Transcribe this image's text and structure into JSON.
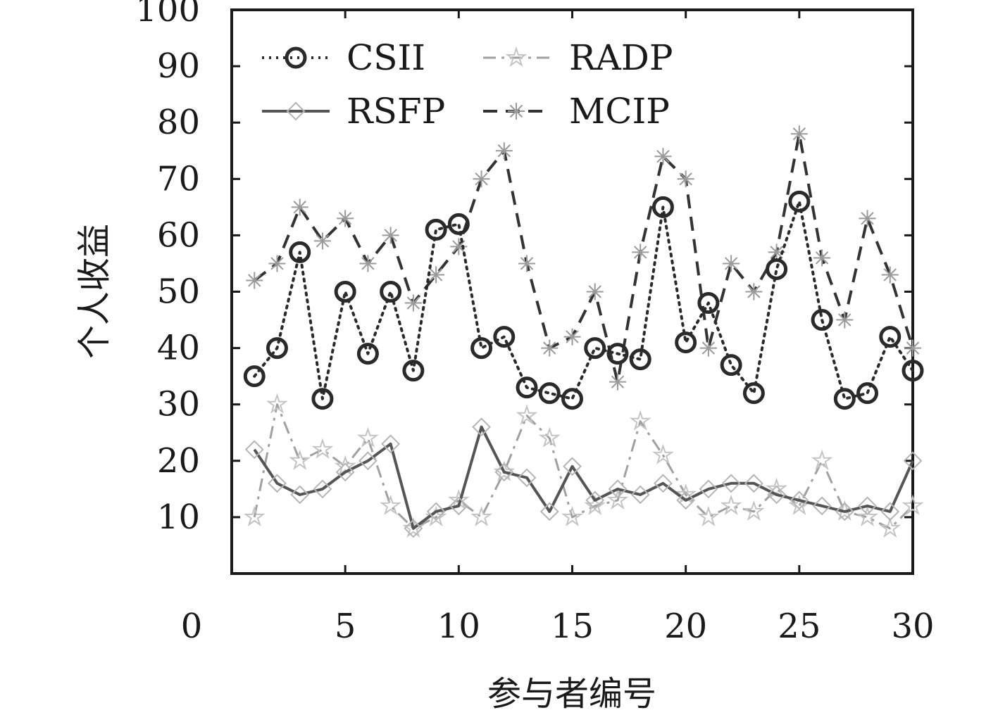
{
  "chart_data": {
    "type": "line",
    "xlabel": "参与者编号",
    "ylabel": "个人收益",
    "xlim": [
      0,
      30
    ],
    "ylim": [
      0,
      100
    ],
    "x_ticks": [
      "0",
      "5",
      "10",
      "15",
      "20",
      "25",
      "30"
    ],
    "y_ticks": [
      "10",
      "20",
      "30",
      "40",
      "50",
      "60",
      "70",
      "80",
      "90",
      "100"
    ],
    "grid": false,
    "legend_position": "top",
    "x": [
      1,
      2,
      3,
      4,
      5,
      6,
      7,
      8,
      9,
      10,
      11,
      12,
      13,
      14,
      15,
      16,
      17,
      18,
      19,
      20,
      21,
      22,
      23,
      24,
      25,
      26,
      27,
      28,
      29,
      30
    ],
    "series": [
      {
        "name": "CSII",
        "line": "dotted",
        "marker": "circle",
        "color": "#2a2a2a",
        "values": [
          35,
          40,
          57,
          31,
          50,
          39,
          50,
          36,
          61,
          62,
          40,
          42,
          33,
          32,
          31,
          40,
          39,
          38,
          65,
          41,
          48,
          37,
          32,
          54,
          66,
          45,
          31,
          32,
          42,
          36
        ]
      },
      {
        "name": "RADP",
        "line": "dashdot",
        "marker": "star",
        "color": "#a0a0a0",
        "values": [
          10,
          30,
          20,
          22,
          19,
          24,
          12,
          8,
          10,
          13,
          10,
          18,
          28,
          24,
          10,
          12,
          13,
          27,
          21,
          14,
          10,
          12,
          11,
          15,
          12,
          20,
          11,
          10,
          8,
          12
        ]
      },
      {
        "name": "RSFP",
        "line": "solid",
        "marker": "diamond",
        "color": "#555555",
        "values": [
          22,
          16,
          14,
          15,
          18,
          20,
          23,
          8,
          11,
          12,
          26,
          18,
          17,
          11,
          19,
          13,
          15,
          14,
          16,
          13,
          15,
          16,
          16,
          14,
          13,
          12,
          11,
          12,
          11,
          20
        ]
      },
      {
        "name": "MCIP",
        "line": "dashed",
        "marker": "asterisk",
        "color": "#333333",
        "values": [
          52,
          55,
          65,
          59,
          63,
          55,
          60,
          48,
          53,
          58,
          70,
          75,
          55,
          40,
          42,
          50,
          34,
          57,
          74,
          70,
          40,
          55,
          50,
          57,
          78,
          56,
          45,
          63,
          53,
          40
        ]
      }
    ]
  }
}
